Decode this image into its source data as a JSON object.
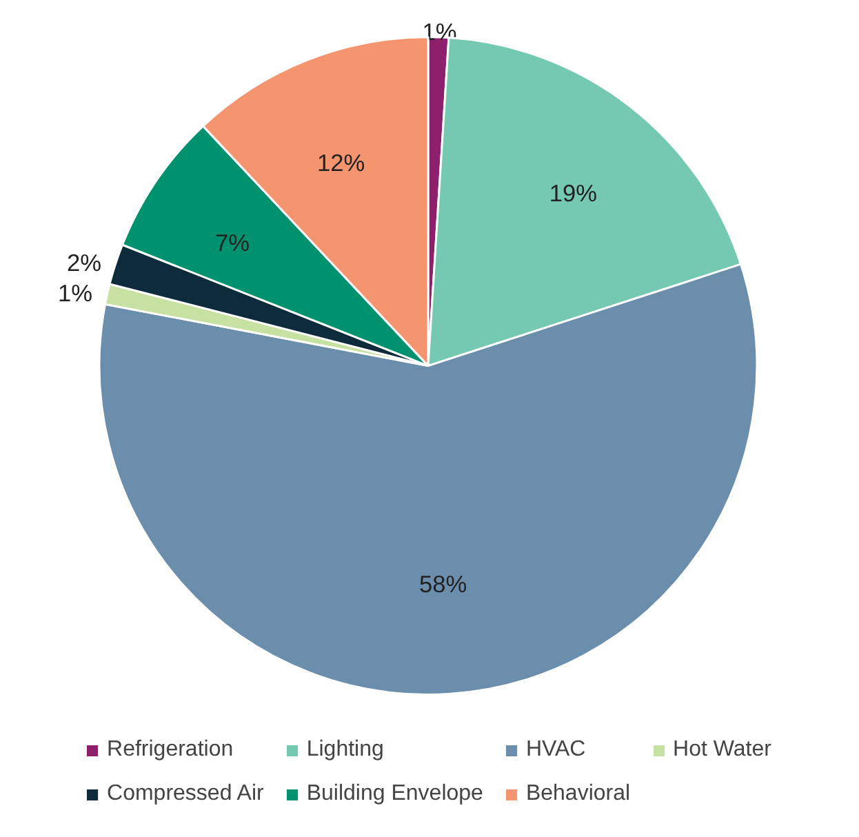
{
  "chart_data": {
    "type": "pie",
    "categories": [
      "Refrigeration",
      "Lighting",
      "HVAC",
      "Hot Water",
      "Compressed Air",
      "Building Envelope",
      "Behavioral"
    ],
    "values": [
      1,
      19,
      58,
      1,
      2,
      7,
      12
    ],
    "colors": [
      "#8e1f6c",
      "#76c9b1",
      "#6b8ead",
      "#c6e1a1",
      "#0e2b3b",
      "#00926f",
      "#f5956f"
    ],
    "value_labels": [
      "1%",
      "19%",
      "58%",
      "1%",
      "2%",
      "7%",
      "12%"
    ],
    "legend": "bottom"
  }
}
